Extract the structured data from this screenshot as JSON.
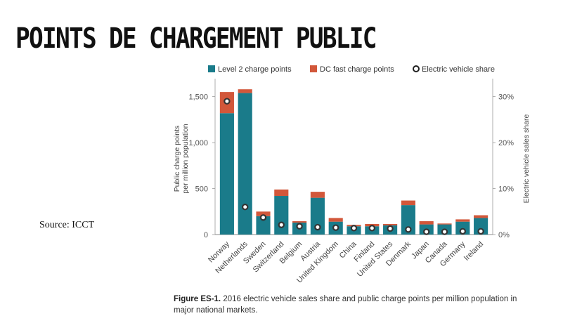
{
  "slide": {
    "title": "POINTS DE CHARGEMENT PUBLIC",
    "source": "Source: ICCT"
  },
  "caption": {
    "label": "Figure ES-1.",
    "text": "2016 electric vehicle sales share and public charge points per million population in major national markets."
  },
  "colors": {
    "level2": "#1a7b8a",
    "dcfast": "#d2573a",
    "ev_share_marker_fill": "#ffffff",
    "ev_share_marker_stroke": "#333333",
    "axis_text": "#555555",
    "grid": "#e2e2e2"
  },
  "chart_data": {
    "type": "bar",
    "stacked": true,
    "categories": [
      "Norway",
      "Netherlands",
      "Sweden",
      "Switzerland",
      "Belgium",
      "Austria",
      "United Kingdom",
      "China",
      "Finland",
      "United States",
      "Denmark",
      "Japan",
      "Canada",
      "Germany",
      "Ireland"
    ],
    "series": [
      {
        "name": "Level 2 charge points",
        "values": [
          1320,
          1540,
          200,
          420,
          130,
          400,
          140,
          90,
          90,
          100,
          320,
          110,
          110,
          140,
          180
        ],
        "color_key": "level2",
        "axis": "left"
      },
      {
        "name": "DC fast charge points",
        "values": [
          230,
          40,
          50,
          70,
          15,
          65,
          40,
          15,
          25,
          15,
          50,
          35,
          10,
          25,
          30
        ],
        "color_key": "dcfast",
        "axis": "left"
      },
      {
        "name": "Electric vehicle share",
        "values": [
          29,
          6,
          3.7,
          2.1,
          1.8,
          1.6,
          1.5,
          1.4,
          1.4,
          1.3,
          1.1,
          0.6,
          0.6,
          0.7,
          0.7
        ],
        "marker": "circle",
        "axis": "right",
        "unit": "%"
      }
    ],
    "ylabel": "Public charge points per million population",
    "y2label": "Electric vehicle sales share",
    "ylim": [
      0,
      1650
    ],
    "y2lim": [
      0,
      33
    ],
    "yticks": [
      "0",
      "500",
      "1,000",
      "1,500"
    ],
    "ytick_values": [
      0,
      500,
      1000,
      1500
    ],
    "y2ticks": [
      "0%",
      "10%",
      "20%",
      "30%"
    ],
    "y2tick_values": [
      0,
      10,
      20,
      30
    ],
    "legend_position": "top",
    "grid": false
  }
}
